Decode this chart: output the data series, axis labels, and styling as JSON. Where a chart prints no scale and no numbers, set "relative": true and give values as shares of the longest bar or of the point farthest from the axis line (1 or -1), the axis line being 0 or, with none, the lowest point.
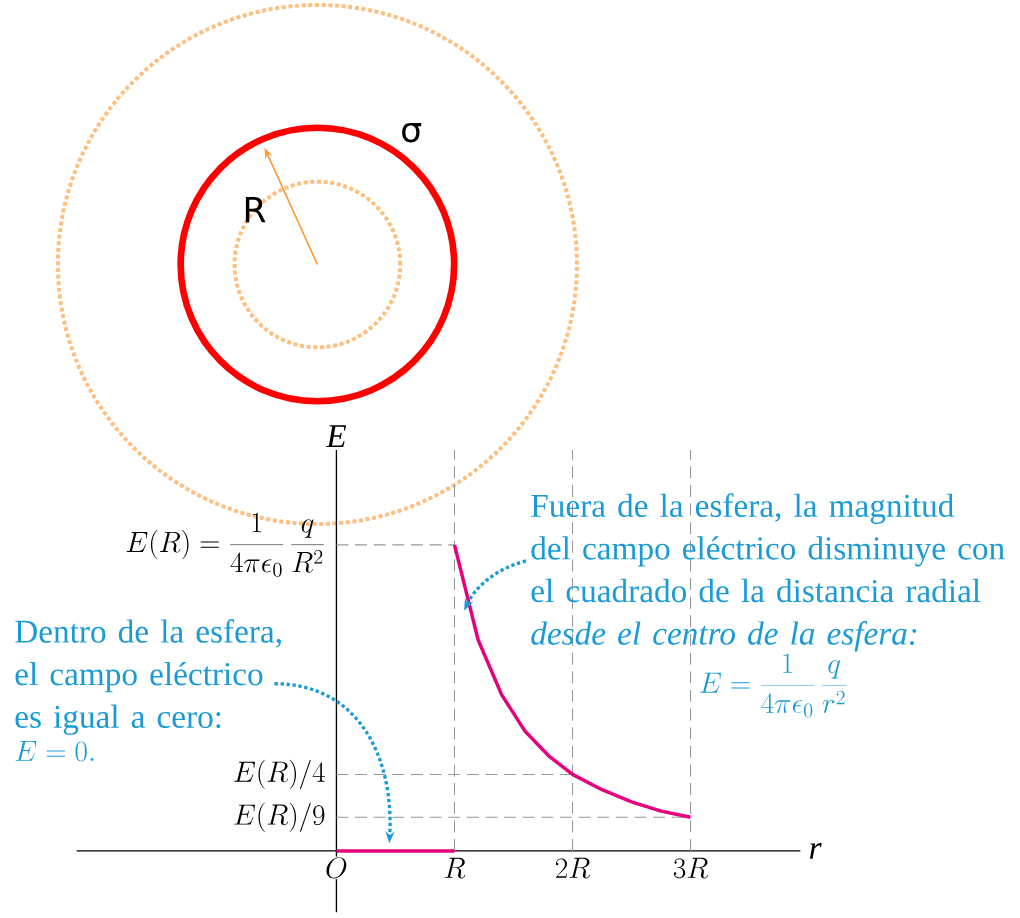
{
  "chart_data": {
    "type": "line",
    "xlabel": "r",
    "ylabel": "E",
    "relative": true,
    "xlim": [
      -2.2,
      3.93
    ],
    "xticks": [
      {
        "value": 0,
        "label": "O"
      },
      {
        "value": 1,
        "label": "R"
      },
      {
        "value": 2,
        "label": "2R"
      },
      {
        "value": 3,
        "label": "3R"
      }
    ],
    "series": [
      {
        "color": "#e6007e",
        "x": [
          0,
          1
        ],
        "values": [
          0,
          0
        ]
      },
      {
        "color": "#e6007e",
        "x": [
          1,
          1.2,
          1.4,
          1.6,
          1.8,
          2,
          2.25,
          2.5,
          2.75,
          3
        ],
        "values": [
          1,
          0.69,
          0.51,
          0.39,
          0.31,
          0.25,
          0.2,
          0.16,
          0.13,
          0.11
        ]
      }
    ],
    "ref_lines": [
      {
        "axis": "x",
        "value": 1,
        "color": "#999999",
        "line_style": "dashed"
      },
      {
        "axis": "x",
        "value": 2,
        "color": "#999999",
        "line_style": "dashed"
      },
      {
        "axis": "x",
        "value": 3,
        "color": "#999999",
        "line_style": "dashed"
      },
      {
        "axis": "y",
        "value": 1,
        "label": "E(R) = \\frac{1}{4\\pi\\epsilon_0}\\,\\frac{q}{R^{2}}",
        "color": "#999999",
        "line_style": "dashed"
      },
      {
        "axis": "y",
        "value": 0.25,
        "label": "E(R)/4",
        "color": "#999999",
        "line_style": "dashed"
      },
      {
        "axis": "y",
        "value": 0.11,
        "label": "E(R)/9",
        "color": "#999999",
        "line_style": "dashed"
      }
    ],
    "annotations": [
      "Fuera de la esfera, la magnitud del campo eléctrico disminuye con el cuadrado de la distancia radial *desde el centro de la esfera:*",
      "E = \\frac{1}{4\\pi\\epsilon_0}\\,\\frac{q}{r^{2}}",
      "Dentro de la esfera, el campo eléctrico es igual a cero:",
      "E = 0.",
      "R",
      "σ"
    ]
  }
}
